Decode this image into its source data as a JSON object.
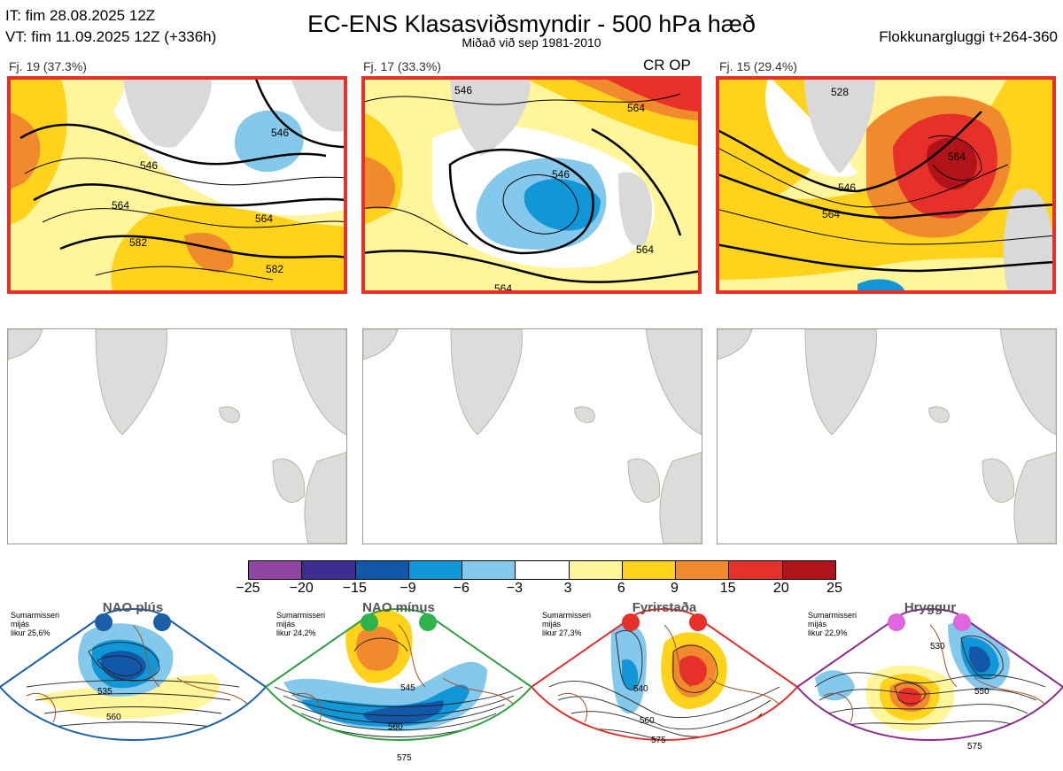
{
  "header": {
    "it_line": "IT: fim 28.08.2025 12Z",
    "vt_line": "VT: fim 11.09.2025 12Z  (+336h)",
    "title": "EC-ENS Klasasviðsmyndir - 500 hPa hæð",
    "subtitle": "Miðað við sep 1981-2010",
    "window": "Flokkunargluggi t+264-360"
  },
  "panels": [
    {
      "label": "Fj. 19 (37.3%)",
      "contours": [
        "546",
        "564",
        "564",
        "582",
        "582",
        "546"
      ]
    },
    {
      "label": "Fj. 17 (33.3%)",
      "tag": "CR OP",
      "contours": [
        "546",
        "564",
        "564",
        "564",
        "546"
      ]
    },
    {
      "label": "Fj. 15 (29.4%)",
      "contours": [
        "546",
        "564",
        "564",
        "528"
      ]
    }
  ],
  "colorbar": {
    "ticks": [
      "−25",
      "−20",
      "−15",
      "−9",
      "−6",
      "−3",
      "3",
      "6",
      "9",
      "15",
      "20",
      "25"
    ],
    "colors": [
      "#8e44a0",
      "#3b2c8f",
      "#1358a8",
      "#1197d8",
      "#84c8ec",
      "#ffffff",
      "#fff59a",
      "#ffd31c",
      "#f08a2c",
      "#e8302a",
      "#b0141a"
    ]
  },
  "regimes": [
    {
      "name": "NAO plús",
      "note": [
        "Sumarmisseri",
        "mijás",
        "likur 25,6%"
      ],
      "border": "#1a5fa8",
      "dot": "#1a5fa8",
      "contours": [
        "535",
        "560"
      ]
    },
    {
      "name": "NAO mínus",
      "note": [
        "Sumarmisseri",
        "mijás",
        "likur 24,2%"
      ],
      "border": "#2e9e3e",
      "dot": "#2eb34a",
      "contours": [
        "545",
        "560",
        "575"
      ]
    },
    {
      "name": "Fyrirstaða",
      "note": [
        "Sumarmisseri",
        "mijás",
        "likur 27,3%"
      ],
      "border": "#e0302a",
      "dot": "#e8302a",
      "contours": [
        "540",
        "560",
        "575"
      ]
    },
    {
      "name": "Hryggur",
      "note": [
        "Sumarmisseri",
        "mijás",
        "likur 22,9%"
      ],
      "border": "#8a2a8f",
      "dot": "#e066e0",
      "contours": [
        "530",
        "550",
        "575"
      ]
    }
  ]
}
